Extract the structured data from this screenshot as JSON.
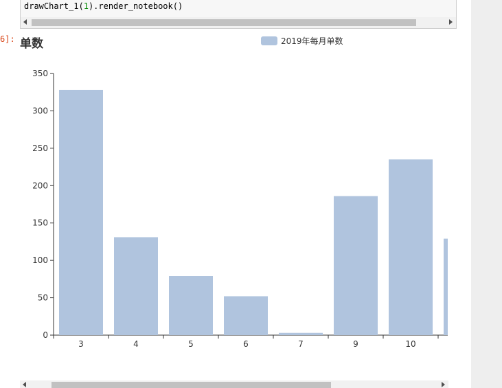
{
  "code_cell": {
    "code_prefix": "drawChart_1(",
    "code_arg": "1",
    "code_suffix": ").render_notebook()"
  },
  "output_prompt": "6]:",
  "chart_data": {
    "type": "bar",
    "title": "单数",
    "legend": "2019年每月单数",
    "legend_position": "top-center",
    "categories": [
      "3",
      "4",
      "5",
      "6",
      "7",
      "9",
      "10",
      ""
    ],
    "series": [
      {
        "name": "2019年每月单数",
        "values": [
          328,
          131,
          79,
          52,
          3,
          186,
          235,
          129
        ]
      }
    ],
    "ylim": [
      0,
      350
    ],
    "yticks": [
      0,
      50,
      100,
      150,
      200,
      250,
      300,
      350
    ],
    "color": "#b0c4de",
    "grid": false
  }
}
